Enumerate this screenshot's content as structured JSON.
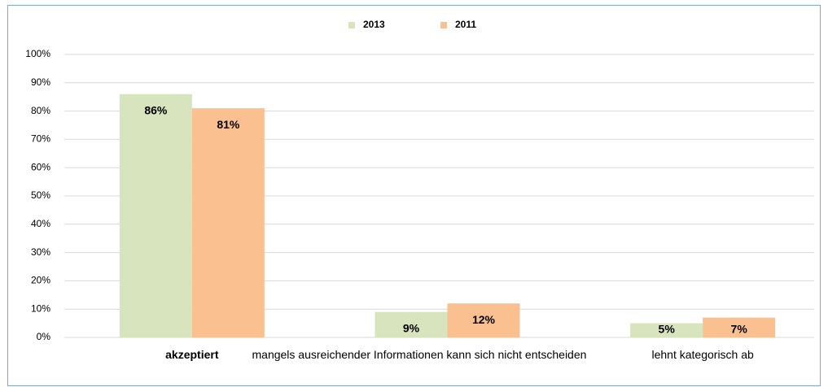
{
  "chart_data": {
    "type": "bar",
    "categories": [
      "akzeptiert",
      "mangels ausreichender Informationen kann sich nicht entscheiden",
      "lehnt kategorisch ab"
    ],
    "series": [
      {
        "name": "2013",
        "color": "#d7e4bd",
        "values": [
          86,
          9,
          5
        ],
        "value_labels": [
          "86%",
          "9%",
          "5%"
        ]
      },
      {
        "name": "2011",
        "color": "#fac090",
        "values": [
          81,
          12,
          7
        ],
        "value_labels": [
          "81%",
          "12%",
          "7%"
        ]
      }
    ],
    "ylim": [
      0,
      100
    ],
    "yticks": [
      {
        "value": 0,
        "label": "0%"
      },
      {
        "value": 10,
        "label": "10%"
      },
      {
        "value": 20,
        "label": "20%"
      },
      {
        "value": 30,
        "label": "30%"
      },
      {
        "value": 40,
        "label": "40%"
      },
      {
        "value": 50,
        "label": "50%"
      },
      {
        "value": 60,
        "label": "60%"
      },
      {
        "value": 70,
        "label": "70%"
      },
      {
        "value": 80,
        "label": "80%"
      },
      {
        "value": 90,
        "label": "90%"
      },
      {
        "value": 100,
        "label": "100%"
      }
    ],
    "grid": true,
    "legend": "top"
  }
}
